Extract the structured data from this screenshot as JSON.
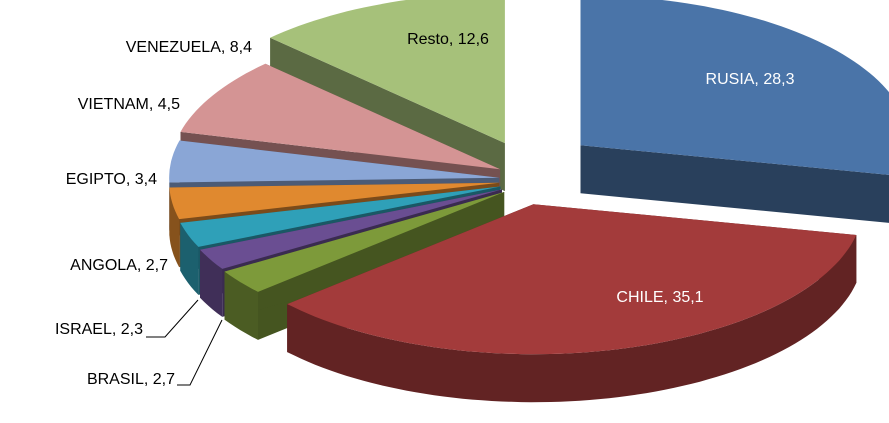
{
  "chart_data": {
    "type": "pie3d",
    "labels": [
      "RUSIA, 28,3",
      "CHILE, 35,1",
      "BRASIL, 2,7",
      "ISRAEL, 2,3",
      "ANGOLA, 2,7",
      "EGIPTO, 3,4",
      "VIETNAM, 4,5",
      "VENEZUELA, 8,4",
      "Resto, 12,6"
    ],
    "values": [
      28.3,
      35.1,
      2.7,
      2.3,
      2.7,
      3.4,
      4.5,
      8.4,
      12.6
    ],
    "colors": [
      "#4a74a8",
      "#a33b3b",
      "#7d9a3a",
      "#6a4e92",
      "#2fa0b8",
      "#e0892f",
      "#8aa6d6",
      "#d49494",
      "#a6c17a"
    ]
  }
}
